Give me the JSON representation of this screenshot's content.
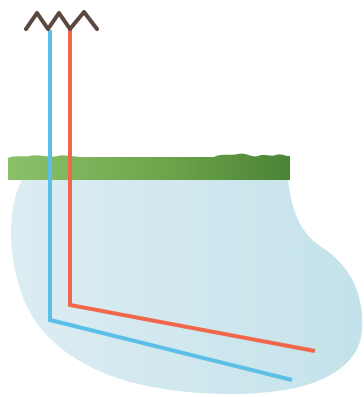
{
  "colors": {
    "background": "#ffffff",
    "pool_start": "#dcedf2",
    "pool_end": "#c4e2ea",
    "ground_light": "#8bc06a",
    "ground_mid": "#6ea54c",
    "ground_dark": "#4b8436",
    "pipe_blue": "#5bbfe8",
    "pipe_red": "#f0674b",
    "zigzag": "#5a4740"
  },
  "icons": {
    "zigzag": "zigzag-arrow-icon"
  }
}
